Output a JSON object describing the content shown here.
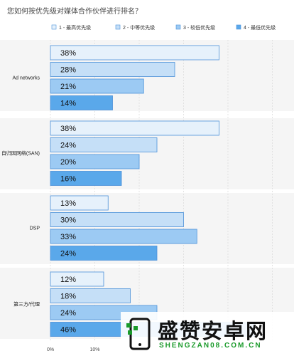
{
  "chart_data": {
    "type": "bar",
    "orientation": "horizontal",
    "title": "您如何按优先级对媒体合作伙伴进行排名？",
    "categories": [
      "Ad networks",
      "自归因网络(SAN)",
      "DSP",
      "第三方/代理"
    ],
    "series": [
      {
        "name": "1 - 最高优先级",
        "values": [
          38,
          38,
          13,
          12
        ],
        "color": "#e6f1fb"
      },
      {
        "name": "2 - 中等优先级",
        "values": [
          28,
          24,
          30,
          18
        ],
        "color": "#c5dff7"
      },
      {
        "name": "3 - 较低优先级",
        "values": [
          21,
          20,
          33,
          24
        ],
        "color": "#9ccaf3"
      },
      {
        "name": "4 - 最低优先级",
        "values": [
          14,
          16,
          24,
          46
        ],
        "color": "#5aa8ea"
      }
    ],
    "xticks": [
      "0%",
      "10%"
    ],
    "xlim": [
      0,
      50
    ],
    "legend_position": "top-right",
    "grid": true,
    "value_suffix": "%"
  },
  "watermark": {
    "text": "盛赞安卓网",
    "url": "SHENGZAN08.COM.CN",
    "colors": {
      "dark": "#111111",
      "green": "#1a9a2a"
    }
  }
}
